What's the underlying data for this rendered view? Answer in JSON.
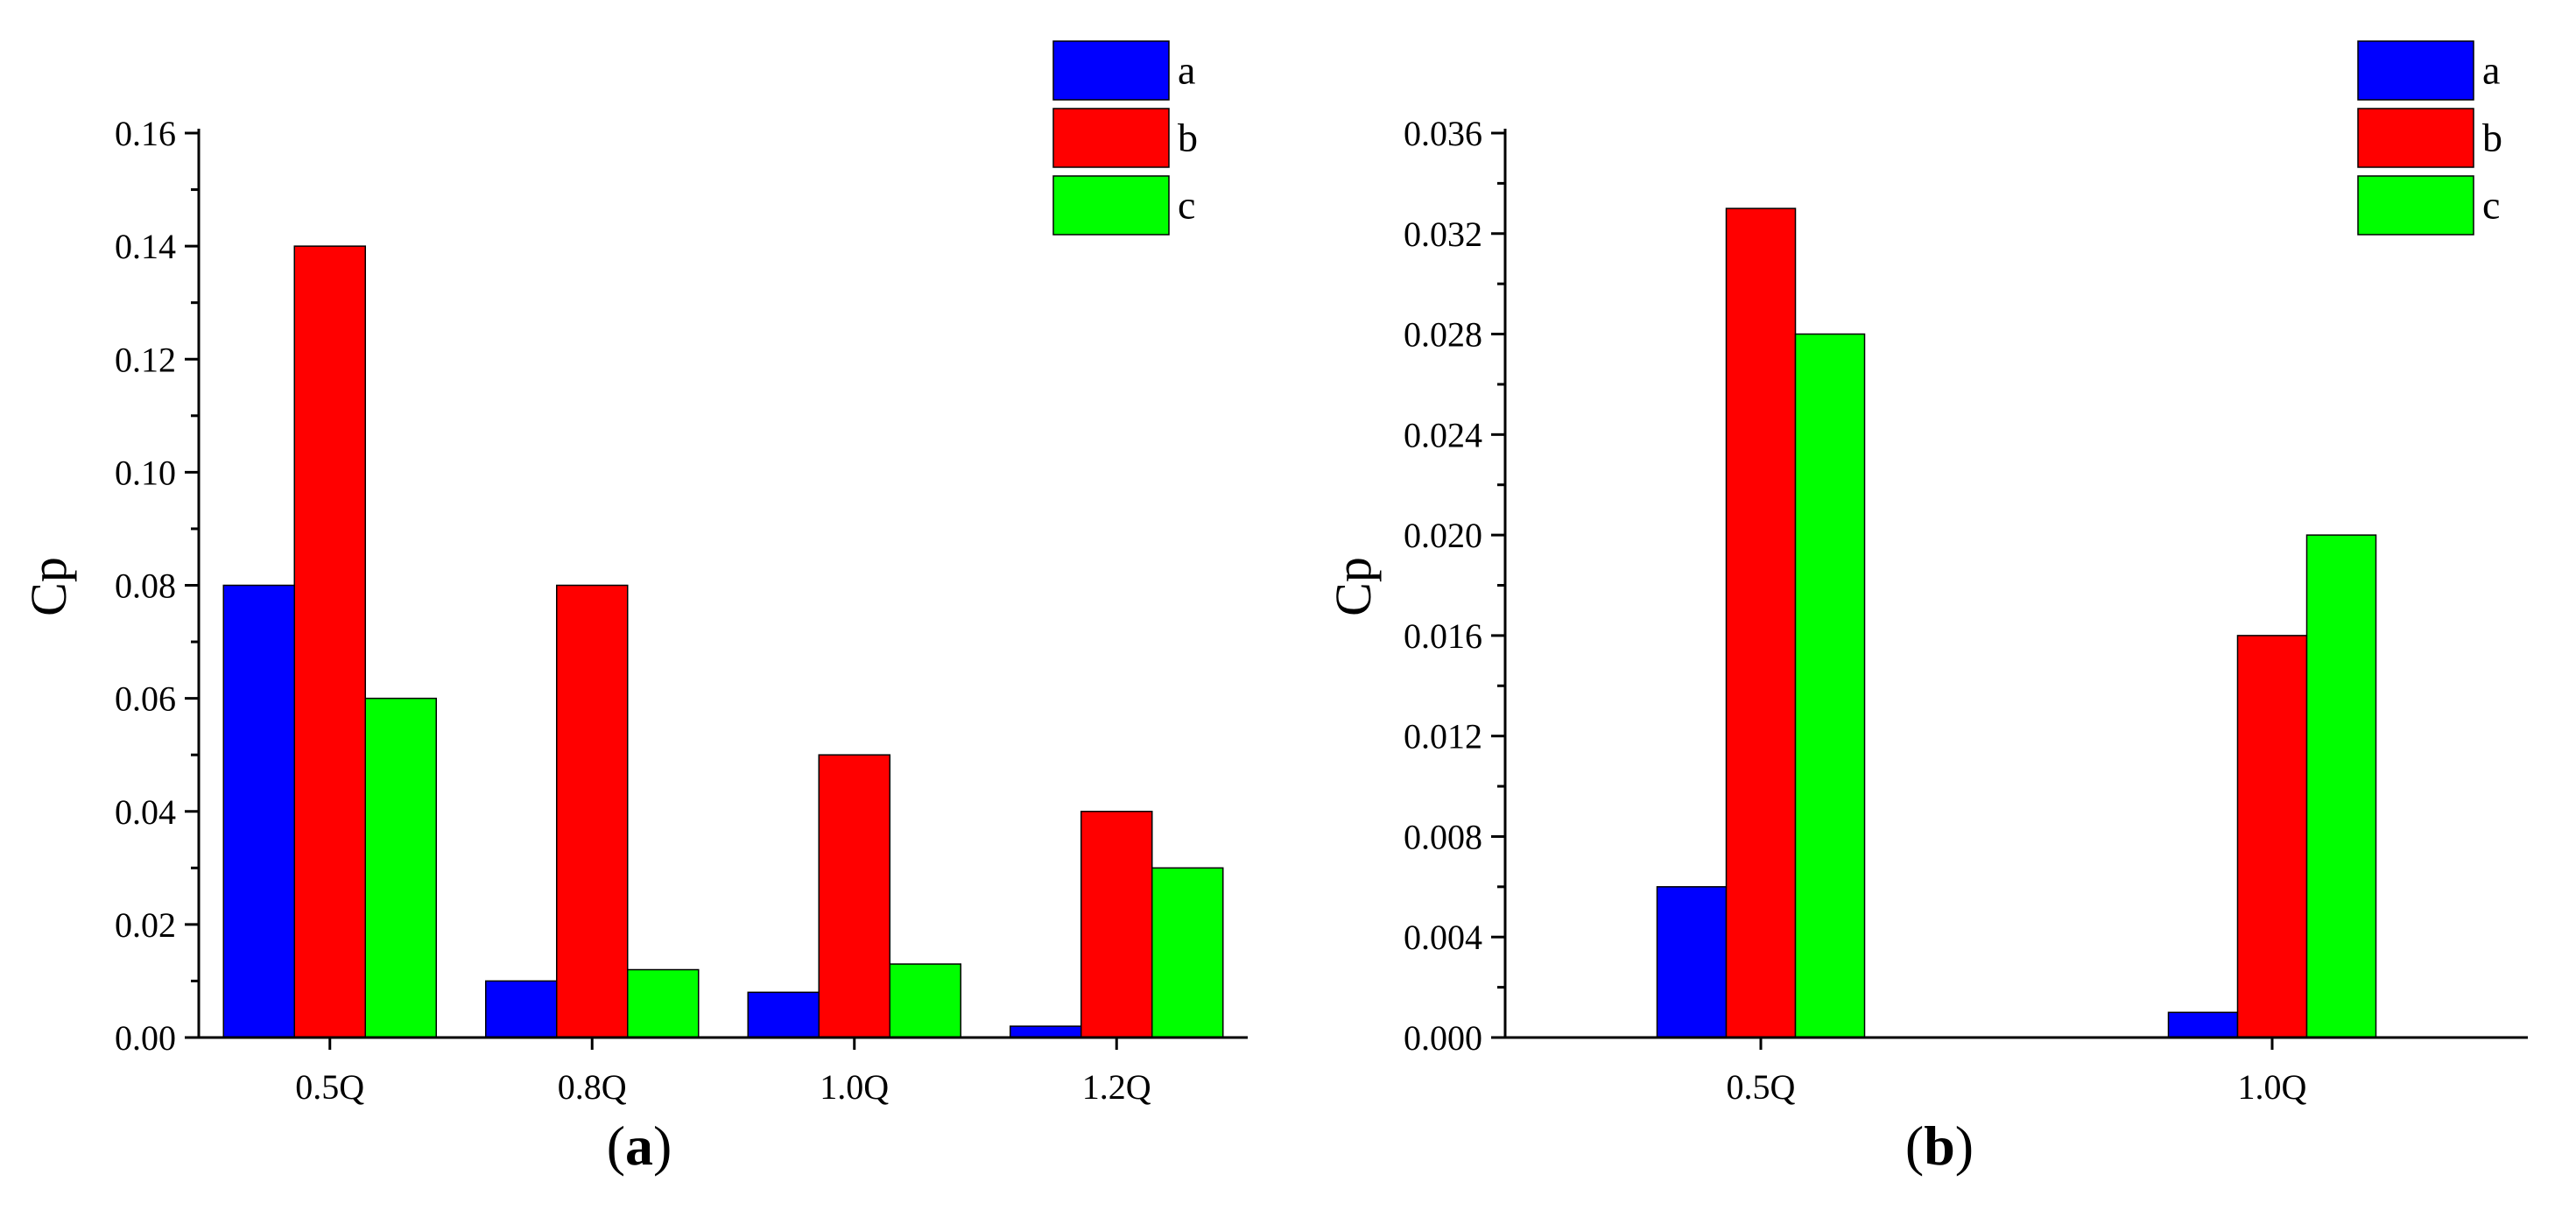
{
  "colors": {
    "a": "#0000ff",
    "b": "#ff0000",
    "c": "#00ff00",
    "axis": "#000000"
  },
  "chart_data": [
    {
      "type": "bar",
      "panel_label": "a",
      "categories": [
        "0.5Q",
        "0.8Q",
        "1.0Q",
        "1.2Q"
      ],
      "series": [
        {
          "name": "a",
          "values": [
            0.08,
            0.01,
            0.008,
            0.002
          ]
        },
        {
          "name": "b",
          "values": [
            0.14,
            0.08,
            0.05,
            0.04
          ]
        },
        {
          "name": "c",
          "values": [
            0.06,
            0.012,
            0.013,
            0.03
          ]
        }
      ],
      "ylabel": "Cp",
      "xlabel": "",
      "ylim": [
        0,
        0.16
      ],
      "yticks": [
        "0.00",
        "0.02",
        "0.04",
        "0.06",
        "0.08",
        "0.10",
        "0.12",
        "0.14",
        "0.16"
      ],
      "grid": false,
      "legend": "top-right"
    },
    {
      "type": "bar",
      "panel_label": "b",
      "categories": [
        "0.5Q",
        "1.0Q"
      ],
      "series": [
        {
          "name": "a",
          "values": [
            0.006,
            0.001
          ]
        },
        {
          "name": "b",
          "values": [
            0.033,
            0.016
          ]
        },
        {
          "name": "c",
          "values": [
            0.028,
            0.02
          ]
        }
      ],
      "ylabel": "Cp",
      "xlabel": "",
      "ylim": [
        0,
        0.036
      ],
      "yticks": [
        "0.000",
        "0.004",
        "0.008",
        "0.012",
        "0.016",
        "0.020",
        "0.024",
        "0.028",
        "0.032",
        "0.036"
      ],
      "grid": false,
      "legend": "top-right"
    }
  ]
}
